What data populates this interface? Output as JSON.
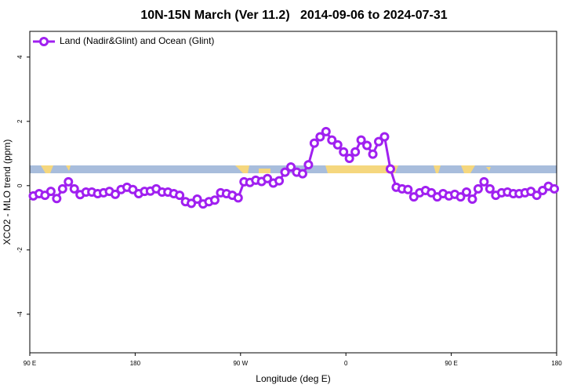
{
  "chart_data": {
    "type": "line",
    "title": "10N-15N March (Ver 11.2)   2014-09-06 to 2024-07-31",
    "xlabel": "Longitude (deg E)",
    "ylabel": "XCO2 - MLO trend (ppm)",
    "xlim": [
      90,
      540
    ],
    "xticks": [
      {
        "value": 90,
        "label": "90 E"
      },
      180,
      {
        "value": 270,
        "label": "90 W"
      },
      {
        "value": 360,
        "label": "0"
      },
      {
        "value": 450,
        "label": "90 E"
      },
      {
        "value": 540,
        "label": "180"
      }
    ],
    "ylim": [
      -5.2,
      4.8
    ],
    "yticks": [
      -4,
      -2,
      0,
      2,
      4
    ],
    "legend": "top-left",
    "x": [
      93,
      98,
      103,
      108,
      113,
      118,
      123,
      128,
      133,
      138,
      143,
      148,
      153,
      158,
      163,
      168,
      173,
      178,
      183,
      188,
      193,
      198,
      203,
      208,
      213,
      218,
      223,
      228,
      233,
      238,
      243,
      248,
      253,
      258,
      263,
      268,
      273,
      278,
      283,
      288,
      293,
      298,
      303,
      308,
      313,
      318,
      323,
      328,
      333,
      338,
      343,
      348,
      353,
      358,
      363,
      368,
      373,
      378,
      383,
      388,
      393,
      398,
      403,
      408,
      413,
      418,
      423,
      428,
      433,
      438,
      443,
      448,
      453,
      458,
      463,
      468,
      473,
      478,
      483,
      488,
      493,
      498,
      503,
      508,
      513,
      518,
      523,
      528,
      533,
      538
    ],
    "series": [
      {
        "name": "Land (Nadir&Glint) and Ocean (Glint)",
        "color": "#a020f0",
        "values": [
          -0.32,
          -0.25,
          -0.3,
          -0.18,
          -0.4,
          -0.1,
          0.12,
          -0.1,
          -0.28,
          -0.2,
          -0.2,
          -0.25,
          -0.22,
          -0.18,
          -0.27,
          -0.12,
          -0.05,
          -0.12,
          -0.25,
          -0.18,
          -0.17,
          -0.1,
          -0.2,
          -0.2,
          -0.25,
          -0.3,
          -0.5,
          -0.55,
          -0.42,
          -0.57,
          -0.5,
          -0.45,
          -0.22,
          -0.25,
          -0.3,
          -0.38,
          0.12,
          0.1,
          0.17,
          0.13,
          0.22,
          0.08,
          0.15,
          0.42,
          0.58,
          0.42,
          0.37,
          0.65,
          1.32,
          1.52,
          1.68,
          1.42,
          1.27,
          1.05,
          0.85,
          1.05,
          1.42,
          1.25,
          0.98,
          1.37,
          1.52,
          0.52,
          -0.05,
          -0.1,
          -0.12,
          -0.35,
          -0.22,
          -0.15,
          -0.22,
          -0.35,
          -0.25,
          -0.32,
          -0.27,
          -0.35,
          -0.2,
          -0.42,
          -0.1,
          0.12,
          -0.1,
          -0.3,
          -0.22,
          -0.2,
          -0.25,
          -0.25,
          -0.22,
          -0.18,
          -0.3,
          -0.15,
          -0.02,
          -0.1
        ]
      }
    ]
  }
}
